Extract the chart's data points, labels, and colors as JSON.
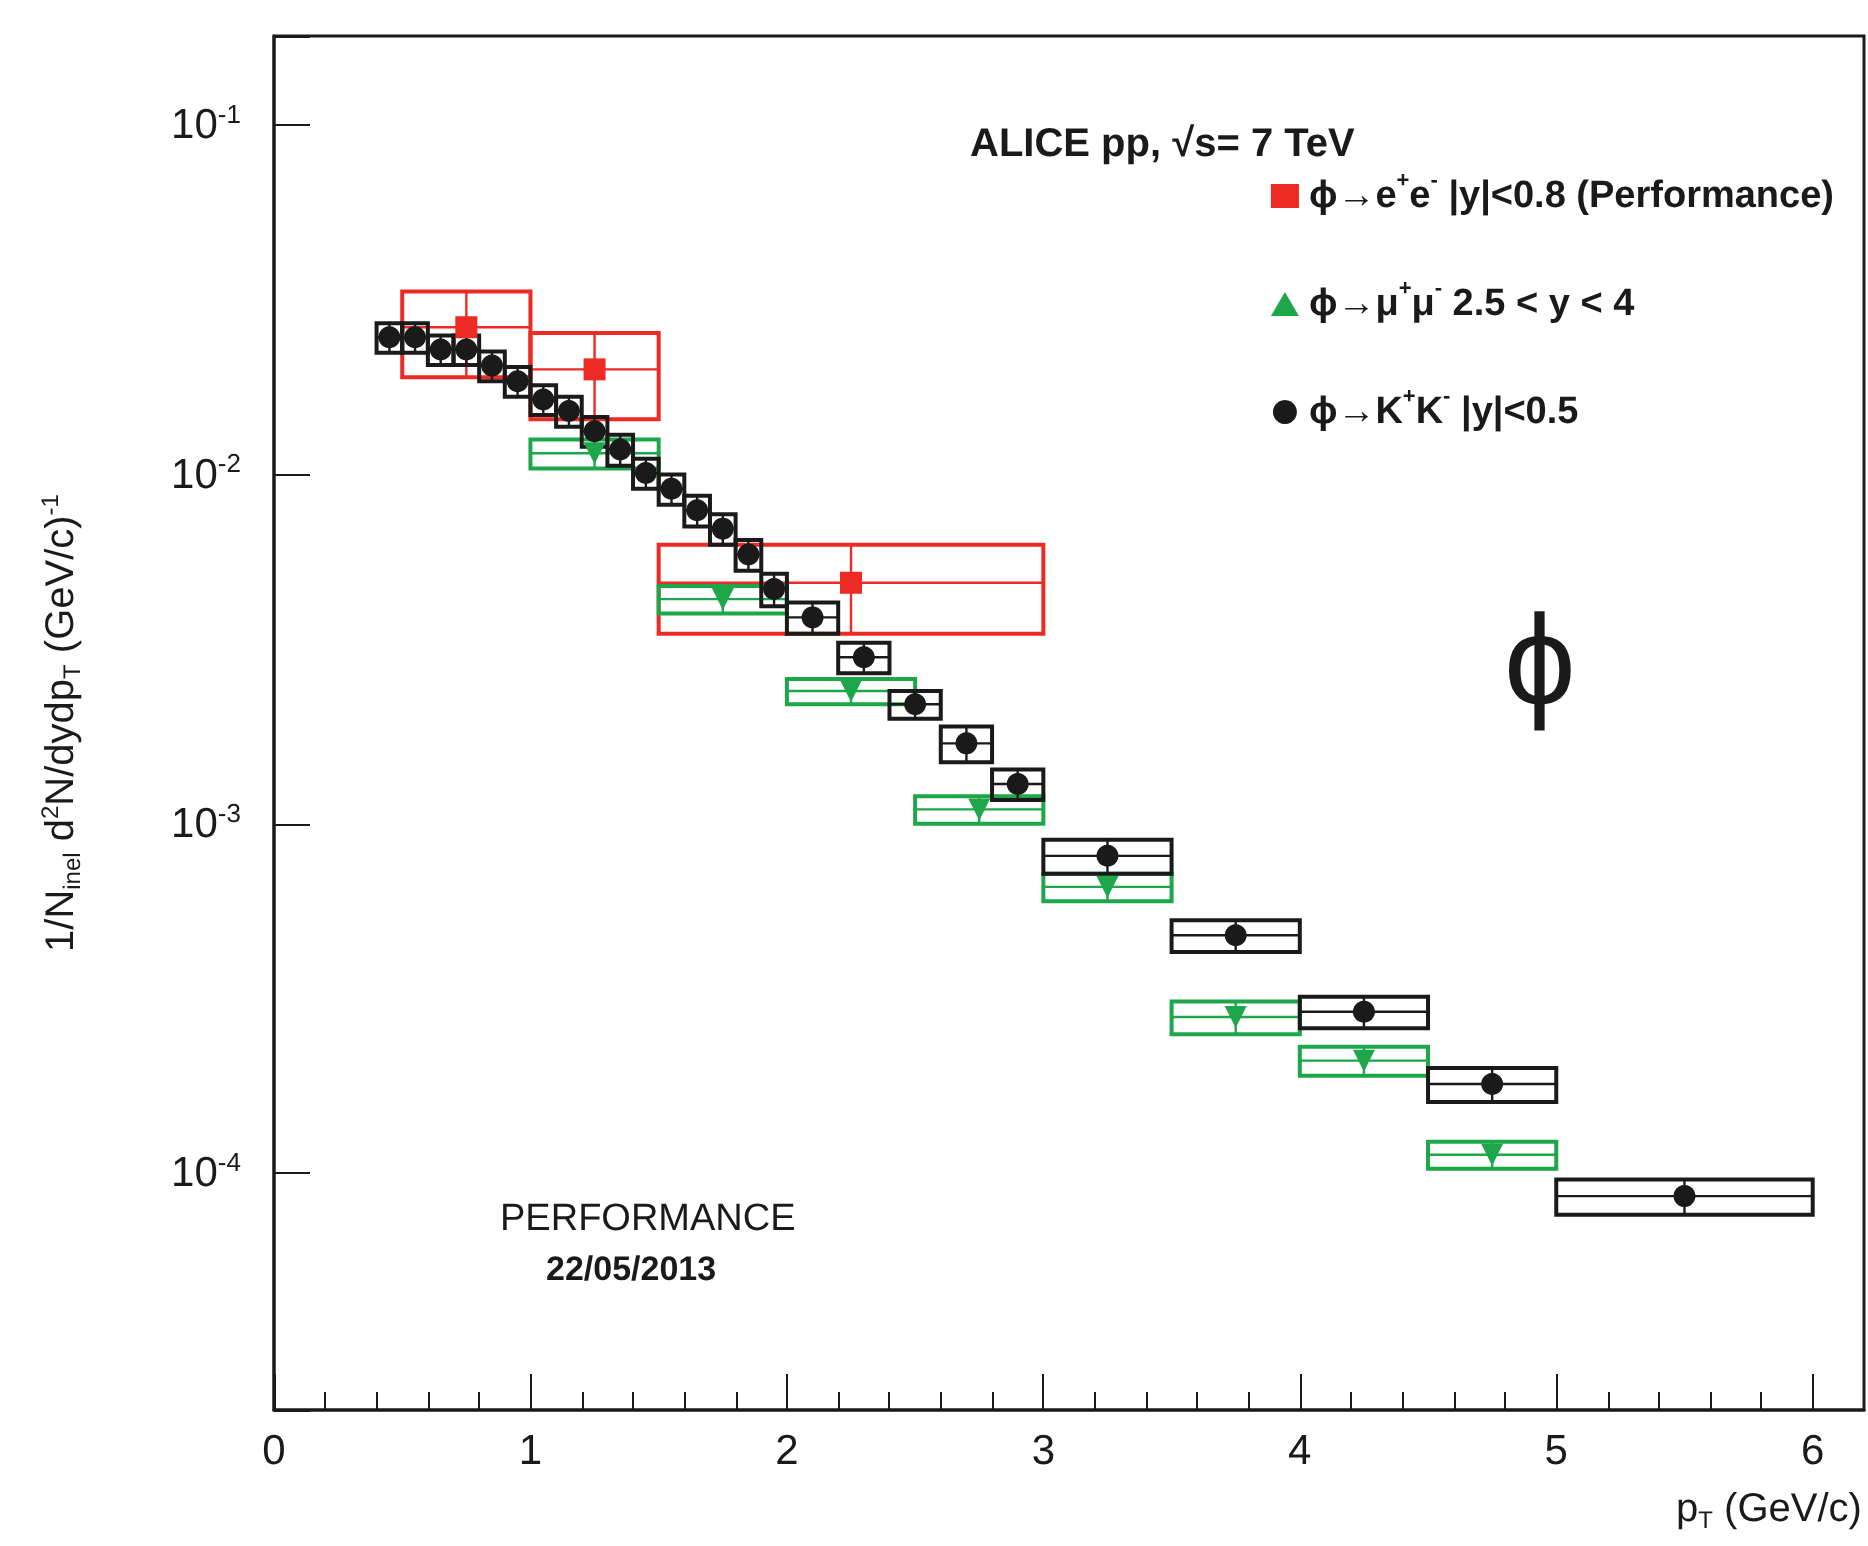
{
  "chart_data": {
    "type": "scatter",
    "xlabel": "p$_{T}$ (GeV/c)",
    "ylabel": "1/N$_{inel}$ d$^{2}$N/dydp$_{T}$ (GeV/c)$^{-1}$",
    "annotations": [
      "ALICE pp, √s= 7 TeV",
      "ϕ",
      "PERFORMANCE",
      "22/05/2013"
    ],
    "xlim": [
      0,
      6.2
    ],
    "xticks": [
      0,
      1,
      2,
      3,
      4,
      5,
      6
    ],
    "ylim": [
      2.1e-05,
      0.18
    ],
    "yticks": [
      {
        "value": 0.0001,
        "label": "10$^{-4}$"
      },
      {
        "value": 0.001,
        "label": "10$^{-3}$"
      },
      {
        "value": 0.01,
        "label": "10$^{-2}$"
      },
      {
        "value": 0.1,
        "label": "10$^{-1}$"
      }
    ],
    "log": "y",
    "grid": false,
    "legend": "top right",
    "series": [
      {
        "name": "ϕ→e$^{+}$e$^{-}$ |y|<0.8 (Performance)",
        "color": "#ee2a24",
        "marker": "square",
        "x": [
          0.75,
          1.25,
          2.25
        ],
        "values": [
          0.0264,
          0.02,
          0.0049
        ],
        "errors": [
          [
            0.019,
            0.0334
          ],
          [
            0.0144,
            0.0254
          ],
          [
            0.0035,
            0.0063
          ]
        ],
        "xerrors": [
          0.25,
          0.25,
          0.75
        ]
      },
      {
        "name": "ϕ→μ$^{+}$μ$^{-}$ 2.5 < y < 4",
        "color": "#1ea64a",
        "marker": "triangle",
        "x": [
          1.25,
          1.75,
          2.25,
          2.75,
          3.25,
          3.75,
          4.25,
          4.75
        ],
        "values": [
          0.0115,
          0.0044,
          0.0024,
          0.0011,
          0.00066,
          0.00028,
          0.00021,
          0.000113
        ],
        "errors": [
          0.0011,
          0.0004,
          0.0002,
          0.0001,
          6e-05,
          3e-05,
          2e-05,
          1e-05
        ],
        "xerrors": [
          0.25,
          0.25,
          0.25,
          0.25,
          0.25,
          0.25,
          0.25,
          0.25
        ]
      },
      {
        "name": "ϕ→K$^{+}$K$^{-}$ |y|<0.5",
        "color": "#1a1a1a",
        "marker": "circle",
        "x": [
          0.45,
          0.55,
          0.65,
          0.75,
          0.85,
          0.95,
          1.05,
          1.15,
          1.25,
          1.35,
          1.45,
          1.55,
          1.65,
          1.75,
          1.85,
          1.95,
          2.1,
          2.3,
          2.5,
          2.7,
          2.9,
          3.25,
          3.75,
          4.25,
          4.75,
          5.5
        ],
        "values": [
          0.0247,
          0.0247,
          0.0228,
          0.0228,
          0.0205,
          0.0185,
          0.0164,
          0.0152,
          0.0133,
          0.0118,
          0.0101,
          0.0091,
          0.0079,
          0.007,
          0.0059,
          0.0047,
          0.0039,
          0.003,
          0.0022,
          0.0017,
          0.0013,
          0.00081,
          0.00048,
          0.00029,
          0.00018,
          8.6e-05
        ],
        "errors": [
          0.0024,
          0.0024,
          0.0022,
          0.0022,
          0.002,
          0.0018,
          0.0016,
          0.0015,
          0.0013,
          0.0012,
          0.001,
          0.0009,
          0.0008,
          0.0007,
          0.0006,
          0.0005,
          0.0004,
          0.0003,
          0.0002,
          0.0002,
          0.00013,
          9e-05,
          5e-05,
          3e-05,
          2e-05,
          1e-05
        ],
        "xerrors": [
          0.05,
          0.05,
          0.05,
          0.05,
          0.05,
          0.05,
          0.05,
          0.05,
          0.05,
          0.05,
          0.05,
          0.05,
          0.05,
          0.05,
          0.05,
          0.05,
          0.1,
          0.1,
          0.1,
          0.1,
          0.1,
          0.25,
          0.25,
          0.25,
          0.25,
          0.5
        ]
      }
    ]
  }
}
